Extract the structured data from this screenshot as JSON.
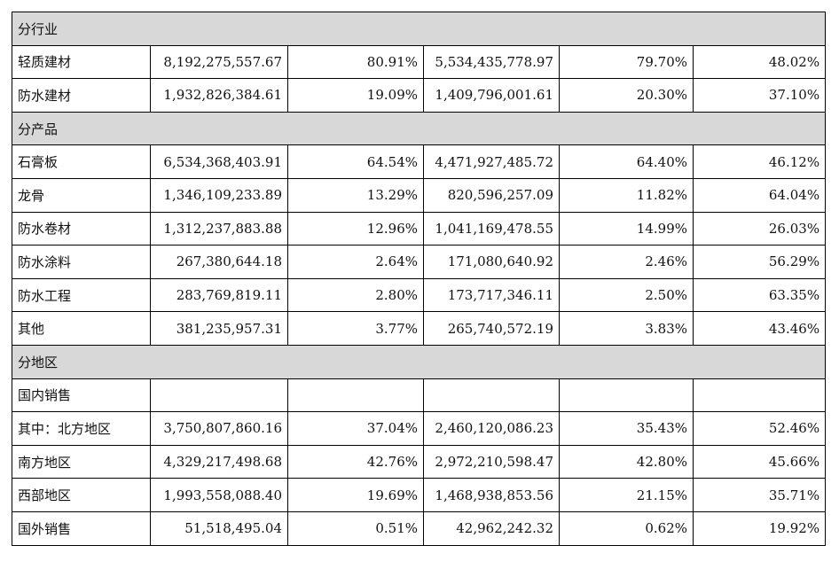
{
  "sections": [
    {
      "heading": "分行业",
      "rows": [
        {
          "label": "轻质建材",
          "revenue": "8,192,275,557.67",
          "revenue_pct": "80.91%",
          "cost": "5,534,435,778.97",
          "cost_pct": "79.70%",
          "margin": "48.02%"
        },
        {
          "label": "防水建材",
          "revenue": "1,932,826,384.61",
          "revenue_pct": "19.09%",
          "cost": "1,409,796,001.61",
          "cost_pct": "20.30%",
          "margin": "37.10%"
        }
      ]
    },
    {
      "heading": "分产品",
      "rows": [
        {
          "label": "石膏板",
          "revenue": "6,534,368,403.91",
          "revenue_pct": "64.54%",
          "cost": "4,471,927,485.72",
          "cost_pct": "64.40%",
          "margin": "46.12%"
        },
        {
          "label": "龙骨",
          "revenue": "1,346,109,233.89",
          "revenue_pct": "13.29%",
          "cost": "820,596,257.09",
          "cost_pct": "11.82%",
          "margin": "64.04%"
        },
        {
          "label": "防水卷材",
          "revenue": "1,312,237,883.88",
          "revenue_pct": "12.96%",
          "cost": "1,041,169,478.55",
          "cost_pct": "14.99%",
          "margin": "26.03%"
        },
        {
          "label": "防水涂料",
          "revenue": "267,380,644.18",
          "revenue_pct": "2.64%",
          "cost": "171,080,640.92",
          "cost_pct": "2.46%",
          "margin": "56.29%"
        },
        {
          "label": "防水工程",
          "revenue": "283,769,819.11",
          "revenue_pct": "2.80%",
          "cost": "173,717,346.11",
          "cost_pct": "2.50%",
          "margin": "63.35%"
        },
        {
          "label": "其他",
          "revenue": "381,235,957.31",
          "revenue_pct": "3.77%",
          "cost": "265,740,572.19",
          "cost_pct": "3.83%",
          "margin": "43.46%"
        }
      ]
    },
    {
      "heading": "分地区",
      "rows": [
        {
          "label": "国内销售",
          "revenue": "",
          "revenue_pct": "",
          "cost": "",
          "cost_pct": "",
          "margin": ""
        },
        {
          "label": "其中：北方地区",
          "revenue": "3,750,807,860.16",
          "revenue_pct": "37.04%",
          "cost": "2,460,120,086.23",
          "cost_pct": "35.43%",
          "margin": "52.46%"
        },
        {
          "label": "南方地区",
          "revenue": "4,329,217,498.68",
          "revenue_pct": "42.76%",
          "cost": "2,972,210,598.47",
          "cost_pct": "42.80%",
          "margin": "45.66%"
        },
        {
          "label": "西部地区",
          "revenue": "1,993,558,088.40",
          "revenue_pct": "19.69%",
          "cost": "1,468,938,853.56",
          "cost_pct": "21.15%",
          "margin": "35.71%"
        },
        {
          "label": "国外销售",
          "revenue": "51,518,495.04",
          "revenue_pct": "0.51%",
          "cost": "42,962,242.32",
          "cost_pct": "0.62%",
          "margin": "19.92%"
        }
      ]
    }
  ]
}
